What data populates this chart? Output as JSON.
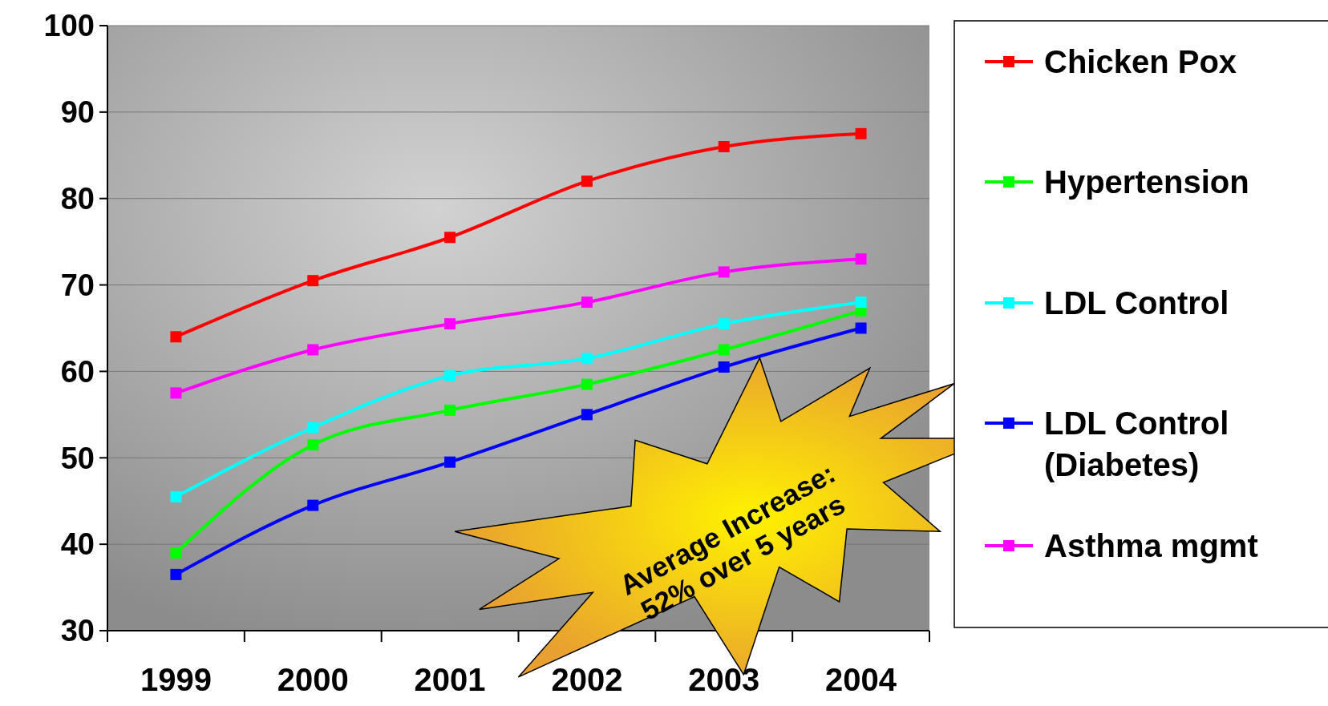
{
  "chart_data": {
    "type": "line",
    "categories": [
      "1999",
      "2000",
      "2001",
      "2002",
      "2003",
      "2004"
    ],
    "series": [
      {
        "name": "Chicken Pox",
        "color": "#ff0000",
        "values": [
          64,
          70.5,
          75.5,
          82,
          86,
          87.5
        ]
      },
      {
        "name": "Hypertension",
        "color": "#00ff00",
        "values": [
          39,
          51.5,
          55.5,
          58.5,
          62.5,
          67
        ]
      },
      {
        "name": "LDL Control",
        "color": "#00ffff",
        "values": [
          45.5,
          53.5,
          59.5,
          61.5,
          65.5,
          68
        ]
      },
      {
        "name": "LDL Control (Diabetes)",
        "color": "#0000ff",
        "values": [
          36.5,
          44.5,
          49.5,
          55,
          60.5,
          65
        ]
      },
      {
        "name": "Asthma mgmt",
        "color": "#ff00ff",
        "values": [
          57.5,
          62.5,
          65.5,
          68,
          71.5,
          73
        ]
      }
    ],
    "ylim": [
      30,
      100
    ],
    "yticks": [
      30,
      40,
      50,
      60,
      70,
      80,
      90,
      100
    ],
    "grid": "y",
    "legend": "right",
    "marker": "square",
    "line_style": "solid",
    "annotations": [
      "Average Increase: 52% over 5 years"
    ]
  }
}
